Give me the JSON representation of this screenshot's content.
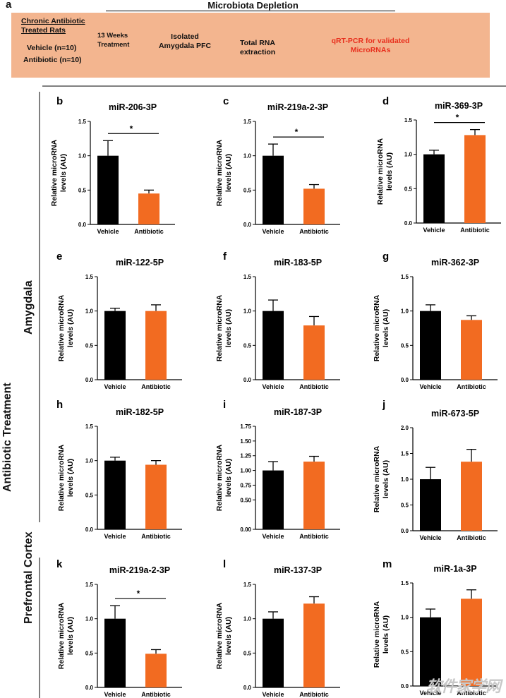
{
  "header": {
    "panel_label": "a",
    "title": "Microbiota Depletion",
    "group_title": "Chronic Antibiotic Treated Rats",
    "vehicle_line": "Vehicle (n=10)",
    "antibiotic_line": "Antibiotic (n=10)",
    "treatment": "13 Weeks Treatment",
    "isolated": "Isolated Amygdala PFC",
    "rna": "Total RNA extraction",
    "qrt": "qRT-PCR for validated MicroRNAs"
  },
  "side_labels": {
    "outer": "Antibiotic Treatment",
    "amygdala": "Amygdala",
    "pfc": "Prefrontal Cortex"
  },
  "colors": {
    "vehicle": "#000000",
    "antibiotic": "#f26b21",
    "banner": "#f3b58f",
    "highlight": "#e8301e"
  },
  "watermark": "软件家学网",
  "chart_data": [
    {
      "panel": "b",
      "type": "bar",
      "title": "miR-206-3P",
      "categories": [
        "Vehicle",
        "Antibiotic"
      ],
      "values": [
        1.0,
        0.45
      ],
      "errors": [
        0.22,
        0.05
      ],
      "ylim": [
        0,
        1.5
      ],
      "yticks": [
        "0.0",
        "0.5",
        "1.0",
        "1.5"
      ],
      "ylabel": "Relative microRNA levels (AU)",
      "significance": "*"
    },
    {
      "panel": "c",
      "type": "bar",
      "title": "miR-219a-2-3P",
      "categories": [
        "Vehicle",
        "Antibiotic"
      ],
      "values": [
        1.0,
        0.52
      ],
      "errors": [
        0.17,
        0.06
      ],
      "ylim": [
        0,
        1.5
      ],
      "yticks": [
        "0.0",
        "0.5",
        "1.0",
        "1.5"
      ],
      "ylabel": "Relative microRNA levels (AU)",
      "significance": "*"
    },
    {
      "panel": "d",
      "type": "bar",
      "title": "miR-369-3P",
      "categories": [
        "Vehicle",
        "Antibiotic"
      ],
      "values": [
        1.0,
        1.28
      ],
      "errors": [
        0.06,
        0.08
      ],
      "ylim": [
        0,
        1.5
      ],
      "yticks": [
        "0.0",
        "0.5",
        "1.0",
        "1.5"
      ],
      "ylabel": "Relative microRNA levels (AU)",
      "significance": "*"
    },
    {
      "panel": "e",
      "type": "bar",
      "title": "miR-122-5P",
      "categories": [
        "Vehicle",
        "Antibiotic"
      ],
      "values": [
        1.0,
        1.0
      ],
      "errors": [
        0.04,
        0.09
      ],
      "ylim": [
        0,
        1.5
      ],
      "yticks": [
        "0.0",
        "0.5",
        "1.0",
        "1.5"
      ],
      "ylabel": "Relative microRNA levels (AU)",
      "significance": ""
    },
    {
      "panel": "f",
      "type": "bar",
      "title": "miR-183-5P",
      "categories": [
        "Vehicle",
        "Antibiotic"
      ],
      "values": [
        1.0,
        0.79
      ],
      "errors": [
        0.16,
        0.13
      ],
      "ylim": [
        0,
        1.5
      ],
      "yticks": [
        "0.0",
        "0.5",
        "1.0",
        "1.5"
      ],
      "ylabel": "Relative microRNA levels (AU)",
      "significance": ""
    },
    {
      "panel": "g",
      "type": "bar",
      "title": "miR-362-3P",
      "categories": [
        "Vehicle",
        "Antibiotic"
      ],
      "values": [
        1.0,
        0.87
      ],
      "errors": [
        0.09,
        0.06
      ],
      "ylim": [
        0,
        1.5
      ],
      "yticks": [
        "0.0",
        "0.5",
        "1.0",
        "1.5"
      ],
      "ylabel": "Relative microRNA levels (AU)",
      "significance": ""
    },
    {
      "panel": "h",
      "type": "bar",
      "title": "miR-182-5P",
      "categories": [
        "Vehicle",
        "Antibiotic"
      ],
      "values": [
        1.0,
        0.94
      ],
      "errors": [
        0.05,
        0.06
      ],
      "ylim": [
        0,
        1.5
      ],
      "yticks": [
        "0.0",
        "0.5",
        "1.0",
        "1.5"
      ],
      "ylabel": "Relative microRNA levels (AU)",
      "significance": ""
    },
    {
      "panel": "i",
      "type": "bar",
      "title": "miR-187-3P",
      "categories": [
        "Vehicle",
        "Antibiotic"
      ],
      "values": [
        1.0,
        1.15
      ],
      "errors": [
        0.15,
        0.09
      ],
      "ylim": [
        0,
        1.5
      ],
      "yticks": [
        "0.00",
        "0.50",
        "0.75",
        "1.00",
        "1.25",
        "1.50",
        "1.75"
      ],
      "ytickvals": [
        0,
        0.5,
        0.75,
        1.0,
        1.25,
        1.5,
        1.75
      ],
      "ymax": 1.75,
      "ylabel": "Relative microRNA levels (AU)",
      "significance": ""
    },
    {
      "panel": "j",
      "type": "bar",
      "title": "miR-673-5P",
      "categories": [
        "Vehicle",
        "Antibiotic"
      ],
      "values": [
        1.0,
        1.34
      ],
      "errors": [
        0.23,
        0.24
      ],
      "ylim": [
        0,
        2.0
      ],
      "yticks": [
        "0.0",
        "0.5",
        "1.0",
        "1.5",
        "2.0"
      ],
      "ylabel": "Relative microRNA levels (AU)",
      "significance": ""
    },
    {
      "panel": "k",
      "type": "bar",
      "title": "miR-219a-2-3P",
      "categories": [
        "Vehicle",
        "Antibiotic"
      ],
      "values": [
        1.0,
        0.49
      ],
      "errors": [
        0.19,
        0.06
      ],
      "ylim": [
        0,
        1.5
      ],
      "yticks": [
        "0.0",
        "0.5",
        "1.0",
        "1.5"
      ],
      "ylabel": "Relative microRNA levels (AU)",
      "significance": "*"
    },
    {
      "panel": "l",
      "type": "bar",
      "title": "miR-137-3P",
      "categories": [
        "Vehicle",
        "Antibiotic"
      ],
      "values": [
        1.0,
        1.22
      ],
      "errors": [
        0.1,
        0.1
      ],
      "ylim": [
        0,
        1.5
      ],
      "yticks": [
        "0.0",
        "0.5",
        "1.0",
        "1.5"
      ],
      "ylabel": "Relative microRNA levels (AU)",
      "significance": ""
    },
    {
      "panel": "m",
      "type": "bar",
      "title": "miR-1a-3P",
      "categories": [
        "Vehicle",
        "Antibiotic"
      ],
      "values": [
        1.0,
        1.27
      ],
      "errors": [
        0.12,
        0.13
      ],
      "ylim": [
        0,
        1.5
      ],
      "yticks": [
        "0.0",
        "0.5",
        "1.0",
        "1.5"
      ],
      "ylabel": "Relative microRNA levels (AU)",
      "significance": ""
    }
  ]
}
